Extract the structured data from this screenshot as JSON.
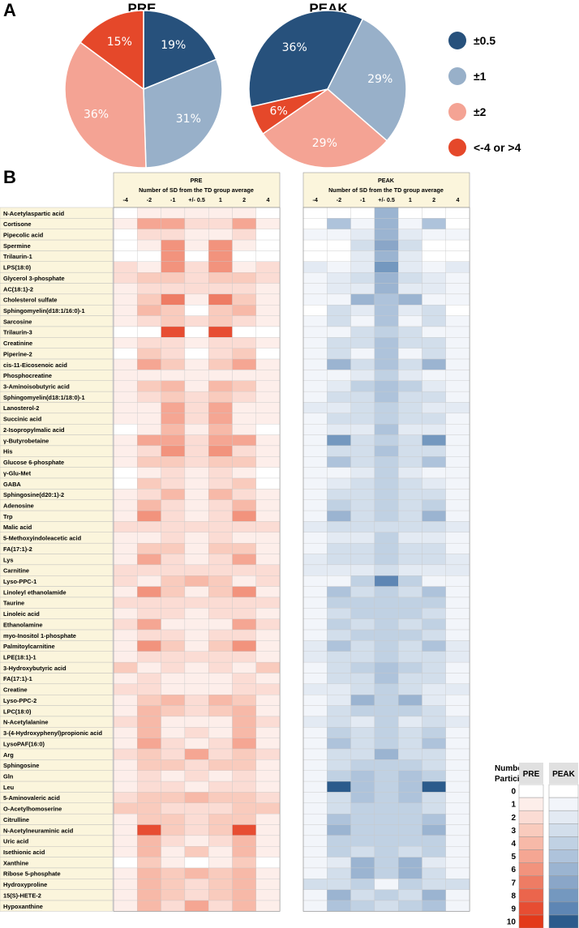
{
  "panel_labels": {
    "a": "A",
    "b": "B"
  },
  "pies": {
    "chart_data": [
      {
        "type": "pie",
        "title": "PRE",
        "labels": [
          "±0.5",
          "±1",
          "±2",
          "<-4 or >4"
        ],
        "values": [
          19,
          31,
          36,
          15
        ],
        "display": [
          "19%",
          "31%",
          "36%",
          "15%"
        ]
      },
      {
        "type": "pie",
        "title": "PEAK",
        "labels": [
          "±0.5",
          "±1",
          "±2",
          "<-4 or >4"
        ],
        "values": [
          36,
          29,
          29,
          6
        ],
        "display": [
          "36%",
          "29%",
          "29%",
          "6%"
        ]
      }
    ],
    "legend": [
      "±0.5",
      "±1",
      "±2",
      "<-4 or >4"
    ],
    "colors": [
      "#27517c",
      "#98b0c9",
      "#f4a394",
      "#e5482a"
    ]
  },
  "heatmaps": {
    "pre": {
      "title": "PRE",
      "subtitle": "Number of SD from the TD group average"
    },
    "peak": {
      "title": "PEAK",
      "subtitle": "Number of SD from the TD group average"
    },
    "col_labels": [
      "-4",
      "-2",
      "-1",
      "+/- 0.5",
      "1",
      "2",
      "4"
    ],
    "scale_title": "Number of\nParticipants",
    "scale_headers": [
      "PRE",
      "PEAK"
    ],
    "scale_levels": [
      "0",
      "1",
      "2",
      "3",
      "4",
      "5",
      "6",
      "7",
      "8",
      "9",
      "10"
    ],
    "red_scale": [
      "#ffffff",
      "#fdeeea",
      "#fbdcd4",
      "#f9cbbd",
      "#f7b9a8",
      "#f5a693",
      "#f2937d",
      "#ee7c64",
      "#eb654c",
      "#e74d32",
      "#e3391a"
    ],
    "blue_scale": [
      "#ffffff",
      "#f2f5fa",
      "#e3eaf3",
      "#d2deeb",
      "#c0d1e3",
      "#aec3db",
      "#9bb4d1",
      "#8aa6c8",
      "#7498bf",
      "#5e86b4",
      "#2b5b8c"
    ]
  },
  "chart_data": {
    "type": "heatmap",
    "x": [
      "-4",
      "-2",
      "-1",
      "+/- 0.5",
      "1",
      "2",
      "4"
    ],
    "rows": [
      "N-Acetylaspartic acid",
      "Cortisone",
      "Pipecolic acid",
      "Spermine",
      "Trilaurin-1",
      "LPS(18:0)",
      "Glycerol 3-phosphate",
      "AC(18:1)-2",
      "Cholesterol sulfate",
      "Sphingomyelin(d18:1/16:0)-1",
      "Sarcosine",
      "Trilaurin-3",
      "Creatinine",
      "Piperine-2",
      "cis-11-Eicosenoic acid",
      "Phosphocreatine",
      "3-Aminoisobutyric acid",
      "Sphingomyelin(d18:1/18:0)-1",
      "Lanosterol-2",
      "Succinic acid",
      "2-Isopropylmalic acid",
      "γ-Butyrobetaine",
      "His",
      "Glucose 6-phosphate",
      "γ-Glu-Met",
      "GABA",
      "Sphingosine(d20:1)-2",
      "Adenosine",
      "Trp",
      "Malic acid",
      "5-Methoxyindoleacetic acid",
      "FA(17:1)-2",
      "Lys",
      "Carnitine",
      "Lyso-PPC-1",
      "Linoleyl ethanolamide",
      "Taurine",
      "Linoleic acid",
      "Ethanolamine",
      "myo-Inositol 1-phosphate",
      "Palmitoylcarnitine",
      "LPE(18:1)-1",
      "3-Hydroxybutyric acid",
      "FA(17:1)-1",
      "Creatine",
      "Lyso-PPC-2",
      "LPC(18:0)",
      "N-Acetylalanine",
      "3-(4-Hydroxyphenyl)propionic acid",
      "LysoPAF(16:0)",
      "Arg",
      "Sphingosine",
      "Gln",
      "Leu",
      "5-Aminovaleric acid",
      "O-Acetylhomoserine",
      "Citrulline",
      "N-Acetylneuraminic acid",
      "Uric acid",
      "Isethionic acid",
      "Xanthine",
      "Ribose 5-phosphate",
      "Hydroxyproline",
      "15(S)-HETE-2",
      "Hypoxanthine"
    ],
    "pre": [
      [
        0,
        1,
        1,
        1,
        1,
        1,
        0
      ],
      [
        1,
        5,
        5,
        2,
        2,
        5,
        1
      ],
      [
        0,
        2,
        2,
        1,
        1,
        2,
        0
      ],
      [
        0,
        1,
        6,
        1,
        6,
        1,
        0
      ],
      [
        0,
        0,
        6,
        0,
        6,
        0,
        0
      ],
      [
        2,
        1,
        6,
        2,
        6,
        1,
        2
      ],
      [
        2,
        3,
        3,
        2,
        3,
        3,
        2
      ],
      [
        1,
        2,
        2,
        2,
        2,
        2,
        1
      ],
      [
        1,
        3,
        7,
        1,
        7,
        3,
        1
      ],
      [
        1,
        4,
        3,
        0,
        3,
        4,
        1
      ],
      [
        1,
        2,
        3,
        2,
        3,
        2,
        1
      ],
      [
        0,
        0,
        9,
        0,
        9,
        0,
        0
      ],
      [
        1,
        2,
        2,
        1,
        2,
        2,
        1
      ],
      [
        0,
        3,
        2,
        0,
        2,
        3,
        0
      ],
      [
        1,
        5,
        3,
        1,
        3,
        5,
        1
      ],
      [
        1,
        1,
        1,
        1,
        1,
        1,
        1
      ],
      [
        1,
        3,
        4,
        1,
        4,
        3,
        1
      ],
      [
        1,
        2,
        3,
        2,
        3,
        2,
        1
      ],
      [
        1,
        1,
        5,
        2,
        5,
        1,
        1
      ],
      [
        1,
        1,
        5,
        2,
        5,
        1,
        1
      ],
      [
        0,
        1,
        4,
        1,
        4,
        1,
        0
      ],
      [
        1,
        5,
        5,
        2,
        5,
        5,
        1
      ],
      [
        1,
        2,
        6,
        2,
        6,
        2,
        1
      ],
      [
        1,
        3,
        3,
        2,
        3,
        3,
        1
      ],
      [
        0,
        1,
        2,
        1,
        2,
        1,
        0
      ],
      [
        0,
        3,
        2,
        1,
        2,
        3,
        0
      ],
      [
        1,
        2,
        4,
        1,
        4,
        2,
        1
      ],
      [
        1,
        4,
        2,
        1,
        2,
        4,
        1
      ],
      [
        1,
        6,
        2,
        1,
        2,
        6,
        1
      ],
      [
        2,
        2,
        2,
        2,
        2,
        2,
        2
      ],
      [
        1,
        1,
        2,
        1,
        2,
        1,
        1
      ],
      [
        1,
        3,
        3,
        1,
        3,
        3,
        1
      ],
      [
        1,
        5,
        2,
        1,
        2,
        5,
        1
      ],
      [
        2,
        2,
        2,
        2,
        2,
        2,
        2
      ],
      [
        2,
        1,
        3,
        4,
        3,
        1,
        2
      ],
      [
        1,
        6,
        3,
        1,
        3,
        6,
        1
      ],
      [
        2,
        2,
        2,
        2,
        2,
        2,
        2
      ],
      [
        1,
        2,
        2,
        1,
        2,
        2,
        1
      ],
      [
        2,
        5,
        1,
        1,
        1,
        5,
        2
      ],
      [
        1,
        2,
        2,
        1,
        2,
        2,
        1
      ],
      [
        1,
        6,
        3,
        1,
        3,
        6,
        1
      ],
      [
        1,
        2,
        2,
        2,
        2,
        2,
        1
      ],
      [
        3,
        1,
        2,
        1,
        2,
        1,
        3
      ],
      [
        1,
        2,
        1,
        1,
        1,
        2,
        1
      ],
      [
        2,
        2,
        1,
        1,
        1,
        2,
        2
      ],
      [
        1,
        3,
        4,
        2,
        4,
        3,
        1
      ],
      [
        1,
        4,
        3,
        2,
        3,
        4,
        1
      ],
      [
        2,
        4,
        1,
        1,
        1,
        4,
        2
      ],
      [
        1,
        4,
        1,
        2,
        1,
        4,
        1
      ],
      [
        1,
        5,
        2,
        1,
        2,
        5,
        1
      ],
      [
        2,
        3,
        2,
        5,
        2,
        3,
        2
      ],
      [
        1,
        3,
        3,
        2,
        3,
        3,
        1
      ],
      [
        1,
        2,
        1,
        2,
        1,
        2,
        1
      ],
      [
        1,
        2,
        2,
        1,
        2,
        2,
        1
      ],
      [
        2,
        3,
        3,
        4,
        3,
        3,
        2
      ],
      [
        3,
        3,
        2,
        2,
        2,
        3,
        3
      ],
      [
        1,
        3,
        3,
        2,
        3,
        3,
        1
      ],
      [
        1,
        9,
        3,
        2,
        3,
        9,
        1
      ],
      [
        1,
        4,
        2,
        1,
        2,
        4,
        1
      ],
      [
        1,
        4,
        1,
        3,
        1,
        4,
        1
      ],
      [
        0,
        3,
        1,
        0,
        1,
        3,
        0
      ],
      [
        1,
        4,
        3,
        4,
        3,
        4,
        1
      ],
      [
        1,
        4,
        3,
        2,
        3,
        4,
        1
      ],
      [
        1,
        4,
        3,
        2,
        3,
        4,
        1
      ],
      [
        1,
        4,
        2,
        5,
        2,
        4,
        1
      ]
    ],
    "peak": [
      [
        0,
        0,
        0,
        6,
        0,
        0,
        0
      ],
      [
        0,
        5,
        1,
        6,
        1,
        5,
        0
      ],
      [
        1,
        1,
        2,
        6,
        2,
        1,
        1
      ],
      [
        0,
        0,
        3,
        7,
        3,
        0,
        0
      ],
      [
        0,
        0,
        2,
        6,
        2,
        0,
        0
      ],
      [
        2,
        1,
        2,
        8,
        2,
        1,
        2
      ],
      [
        1,
        2,
        3,
        6,
        3,
        2,
        1
      ],
      [
        1,
        2,
        2,
        6,
        2,
        2,
        1
      ],
      [
        1,
        1,
        6,
        5,
        6,
        1,
        1
      ],
      [
        0,
        3,
        2,
        5,
        2,
        3,
        0
      ],
      [
        1,
        3,
        1,
        5,
        1,
        3,
        1
      ],
      [
        1,
        1,
        3,
        4,
        3,
        1,
        1
      ],
      [
        1,
        3,
        3,
        5,
        3,
        3,
        1
      ],
      [
        1,
        3,
        1,
        5,
        1,
        3,
        1
      ],
      [
        1,
        6,
        3,
        5,
        3,
        6,
        1
      ],
      [
        1,
        1,
        2,
        4,
        2,
        1,
        1
      ],
      [
        1,
        2,
        4,
        5,
        4,
        2,
        1
      ],
      [
        1,
        3,
        3,
        5,
        3,
        3,
        1
      ],
      [
        2,
        2,
        3,
        4,
        3,
        2,
        2
      ],
      [
        1,
        3,
        3,
        4,
        3,
        3,
        1
      ],
      [
        1,
        2,
        2,
        5,
        2,
        2,
        1
      ],
      [
        1,
        8,
        3,
        4,
        3,
        8,
        1
      ],
      [
        1,
        3,
        3,
        5,
        3,
        3,
        1
      ],
      [
        1,
        5,
        3,
        4,
        3,
        5,
        1
      ],
      [
        1,
        1,
        2,
        4,
        2,
        1,
        1
      ],
      [
        1,
        2,
        3,
        4,
        3,
        2,
        1
      ],
      [
        1,
        3,
        3,
        4,
        3,
        3,
        1
      ],
      [
        1,
        4,
        3,
        4,
        3,
        4,
        1
      ],
      [
        1,
        6,
        3,
        4,
        3,
        6,
        1
      ],
      [
        2,
        3,
        3,
        3,
        3,
        3,
        2
      ],
      [
        1,
        2,
        2,
        4,
        2,
        2,
        1
      ],
      [
        1,
        3,
        3,
        4,
        3,
        3,
        1
      ],
      [
        2,
        3,
        3,
        4,
        3,
        3,
        2
      ],
      [
        2,
        2,
        2,
        3,
        2,
        2,
        2
      ],
      [
        1,
        1,
        4,
        9,
        4,
        1,
        1
      ],
      [
        1,
        5,
        3,
        4,
        3,
        5,
        1
      ],
      [
        1,
        4,
        4,
        4,
        4,
        4,
        1
      ],
      [
        1,
        3,
        4,
        4,
        4,
        3,
        1
      ],
      [
        1,
        4,
        3,
        4,
        3,
        4,
        1
      ],
      [
        1,
        3,
        4,
        4,
        4,
        3,
        1
      ],
      [
        2,
        5,
        3,
        4,
        3,
        5,
        2
      ],
      [
        2,
        3,
        3,
        4,
        3,
        3,
        2
      ],
      [
        1,
        3,
        4,
        5,
        4,
        3,
        1
      ],
      [
        1,
        3,
        3,
        5,
        3,
        3,
        1
      ],
      [
        2,
        2,
        3,
        4,
        3,
        2,
        2
      ],
      [
        1,
        2,
        6,
        4,
        6,
        2,
        1
      ],
      [
        1,
        3,
        4,
        4,
        4,
        3,
        1
      ],
      [
        2,
        3,
        2,
        4,
        2,
        3,
        2
      ],
      [
        1,
        4,
        3,
        4,
        3,
        4,
        1
      ],
      [
        1,
        5,
        3,
        4,
        3,
        5,
        1
      ],
      [
        1,
        3,
        3,
        6,
        3,
        3,
        1
      ],
      [
        1,
        3,
        4,
        4,
        4,
        3,
        1
      ],
      [
        1,
        4,
        5,
        4,
        5,
        4,
        1
      ],
      [
        1,
        10,
        5,
        4,
        5,
        10,
        1
      ],
      [
        1,
        3,
        5,
        4,
        5,
        3,
        1
      ],
      [
        1,
        3,
        4,
        4,
        4,
        3,
        1
      ],
      [
        1,
        5,
        4,
        4,
        4,
        5,
        1
      ],
      [
        1,
        6,
        4,
        4,
        4,
        6,
        1
      ],
      [
        1,
        4,
        4,
        4,
        4,
        4,
        1
      ],
      [
        1,
        4,
        3,
        4,
        3,
        4,
        1
      ],
      [
        1,
        2,
        6,
        4,
        6,
        2,
        1
      ],
      [
        1,
        3,
        6,
        4,
        6,
        3,
        1
      ],
      [
        3,
        3,
        4,
        1,
        4,
        3,
        3
      ],
      [
        1,
        6,
        3,
        4,
        3,
        6,
        1
      ],
      [
        1,
        5,
        4,
        3,
        4,
        5,
        1
      ]
    ]
  }
}
